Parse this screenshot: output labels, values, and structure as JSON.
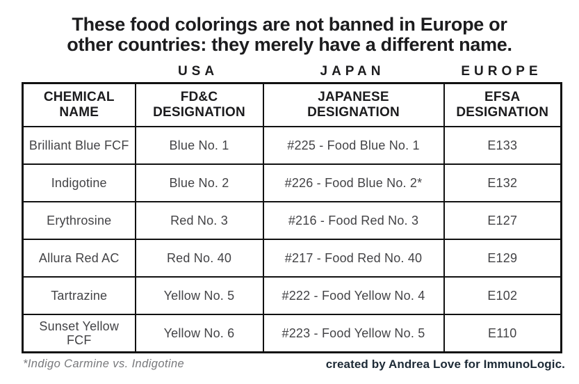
{
  "display": {
    "title_line1": "These food colorings are not banned in Europe or",
    "title_line2": "other countries: they merely have a different name.",
    "header_lines": [
      [
        "CHEMICAL",
        "NAME"
      ],
      [
        "FD&C",
        "DESIGNATION"
      ],
      [
        "JAPANESE",
        "DESIGNATION"
      ],
      [
        "EFSA",
        "DESIGNATION"
      ]
    ]
  },
  "chart_data": {
    "type": "table",
    "title": "These food colorings are not banned in Europe or other countries: they merely have a different name.",
    "region_groups": [
      "USA",
      "JAPAN",
      "EUROPE"
    ],
    "columns": [
      "CHEMICAL NAME",
      "FD&C DESIGNATION",
      "JAPANESE DESIGNATION",
      "EFSA DESIGNATION"
    ],
    "rows": [
      [
        "Brilliant Blue FCF",
        "Blue No. 1",
        "#225 - Food Blue No. 1",
        "E133"
      ],
      [
        "Indigotine",
        "Blue No. 2",
        "#226 - Food Blue No. 2*",
        "E132"
      ],
      [
        "Erythrosine",
        "Red No. 3",
        "#216 - Food Red No. 3",
        "E127"
      ],
      [
        "Allura Red AC",
        "Red No. 40",
        "#217 - Food Red No. 40",
        "E129"
      ],
      [
        "Tartrazine",
        "Yellow No. 5",
        "#222 - Food Yellow No. 4",
        "E102"
      ],
      [
        "Sunset Yellow FCF",
        "Yellow No. 6",
        "#223 - Food Yellow No. 5",
        "E110"
      ]
    ],
    "footnote": "*Indigo Carmine vs. Indigotine",
    "credit": "created by Andrea Love for ImmunoLogic."
  },
  "colors": {
    "text": "#1c1c1e",
    "cell_text": "#434346",
    "border": "#111111",
    "footnote_gray": "#77787b",
    "credit_navy": "#1d2a36",
    "background": "#ffffff"
  }
}
